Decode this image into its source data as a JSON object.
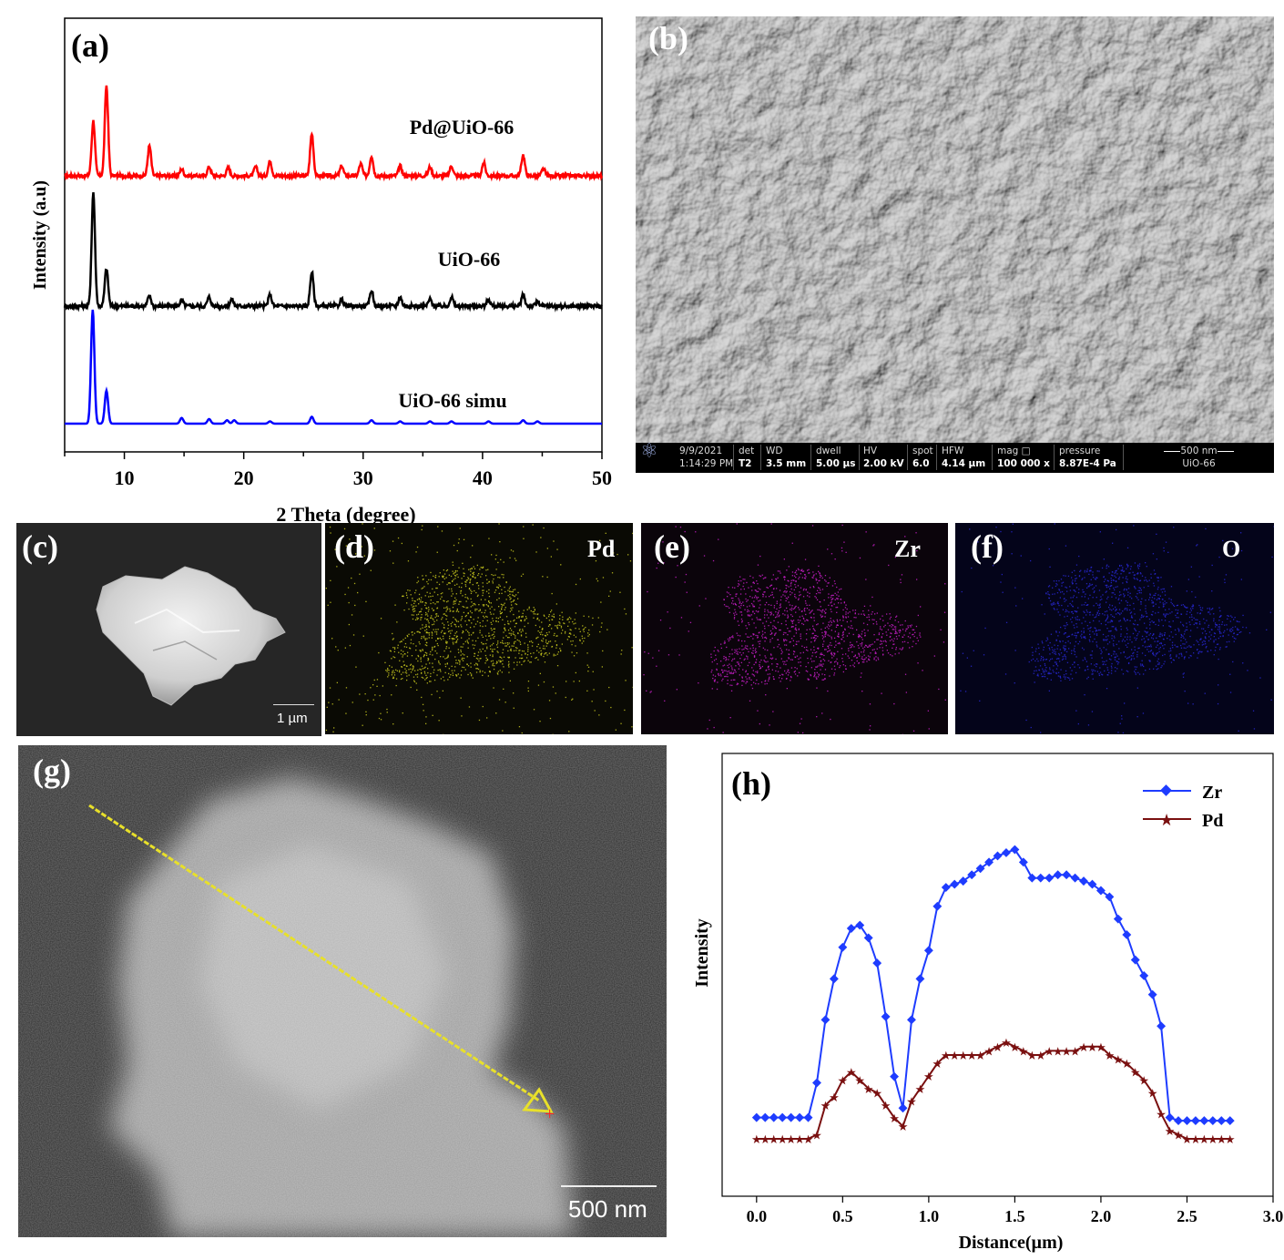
{
  "panels": {
    "a": {
      "label": "(a)",
      "chart_data": {
        "type": "line",
        "xlabel": "2 Theta (degree)",
        "ylabel": "Intensity (a.u)",
        "xlim": [
          5,
          50
        ],
        "xticks": [
          10,
          20,
          30,
          40,
          50
        ],
        "grid": false,
        "series": [
          {
            "name": "Pd@UiO-66",
            "color": "#ff0000",
            "offset": 2.0,
            "peaks": [
              [
                7.4,
                0.55
              ],
              [
                8.5,
                0.9
              ],
              [
                12.1,
                0.3
              ],
              [
                14.8,
                0.07
              ],
              [
                17.1,
                0.09
              ],
              [
                18.7,
                0.08
              ],
              [
                21.0,
                0.09
              ],
              [
                22.2,
                0.15
              ],
              [
                25.7,
                0.42
              ],
              [
                28.2,
                0.1
              ],
              [
                29.8,
                0.12
              ],
              [
                30.7,
                0.2
              ],
              [
                33.1,
                0.1
              ],
              [
                35.6,
                0.09
              ],
              [
                37.4,
                0.1
              ],
              [
                40.1,
                0.13
              ],
              [
                43.4,
                0.21
              ],
              [
                45.1,
                0.07
              ]
            ]
          },
          {
            "name": "UiO-66",
            "color": "#000000",
            "offset": 1.0,
            "peaks": [
              [
                7.4,
                1.0
              ],
              [
                8.5,
                0.33
              ],
              [
                12.1,
                0.09
              ],
              [
                14.8,
                0.05
              ],
              [
                17.1,
                0.08
              ],
              [
                19.0,
                0.06
              ],
              [
                22.2,
                0.1
              ],
              [
                25.7,
                0.3
              ],
              [
                28.2,
                0.06
              ],
              [
                30.7,
                0.14
              ],
              [
                33.1,
                0.08
              ],
              [
                35.6,
                0.06
              ],
              [
                37.4,
                0.08
              ],
              [
                40.5,
                0.06
              ],
              [
                43.4,
                0.1
              ],
              [
                44.6,
                0.04
              ]
            ]
          },
          {
            "name": "UiO-66 simu",
            "color": "#0000ff",
            "offset": 0.0,
            "peaks": [
              [
                7.35,
                1.0
              ],
              [
                8.5,
                0.29
              ],
              [
                14.8,
                0.05
              ],
              [
                17.1,
                0.04
              ],
              [
                18.6,
                0.03
              ],
              [
                19.2,
                0.03
              ],
              [
                22.2,
                0.02
              ],
              [
                25.7,
                0.06
              ],
              [
                30.7,
                0.03
              ],
              [
                33.1,
                0.02
              ],
              [
                35.6,
                0.02
              ],
              [
                37.4,
                0.02
              ],
              [
                40.5,
                0.02
              ],
              [
                43.4,
                0.03
              ],
              [
                44.6,
                0.02
              ]
            ]
          }
        ]
      }
    },
    "b": {
      "label": "(b)",
      "info_bar": {
        "date": "9/9/2021",
        "time": "1:14:29 PM",
        "det_label": "det",
        "det": "T2",
        "wd_label": "WD",
        "wd": "3.5 mm",
        "dwell_label": "dwell",
        "dwell": "5.00 µs",
        "hv_label": "HV",
        "hv": "2.00 kV",
        "spot_label": "spot",
        "spot": "6.0",
        "hfw_label": "HFW",
        "hfw": "4.14 µm",
        "mag_label": "mag",
        "mag_icon": "□",
        "mag": "100 000 x",
        "pressure_label": "pressure",
        "pressure": "8.87E-4 Pa",
        "scale": "500 nm",
        "sample": "UiO-66"
      }
    },
    "c": {
      "label": "(c)",
      "scale_bar": "1 µm"
    },
    "d": {
      "label": "(d)",
      "element": "Pd",
      "color": "#c8c81e"
    },
    "e": {
      "label": "(e)",
      "element": "Zr",
      "color": "#c81ec8"
    },
    "f": {
      "label": "(f)",
      "element": "O",
      "color": "#2828d2"
    },
    "g": {
      "label": "(g)",
      "scale_bar": "500 nm"
    },
    "h": {
      "label": "(h)",
      "chart_data": {
        "type": "line",
        "xlabel": "Distance(µm)",
        "ylabel": "Intensity",
        "xlim": [
          -0.2,
          3.0
        ],
        "ylim": [
          0,
          100
        ],
        "xticks": [
          "0.0",
          "0.5",
          "1.0",
          "1.5",
          "2.0",
          "2.5",
          "3.0"
        ],
        "legend_position": "top-right",
        "grid": false,
        "series": [
          {
            "name": "Zr",
            "color": "#1e3cff",
            "marker": "diamond",
            "x": [
              0.0,
              0.05,
              0.1,
              0.15,
              0.2,
              0.25,
              0.3,
              0.35,
              0.4,
              0.45,
              0.5,
              0.55,
              0.6,
              0.65,
              0.7,
              0.75,
              0.8,
              0.85,
              0.9,
              0.95,
              1.0,
              1.05,
              1.1,
              1.15,
              1.2,
              1.25,
              1.3,
              1.35,
              1.4,
              1.45,
              1.5,
              1.55,
              1.6,
              1.65,
              1.7,
              1.75,
              1.8,
              1.85,
              1.9,
              1.95,
              2.0,
              2.05,
              2.1,
              2.15,
              2.2,
              2.25,
              2.3,
              2.35,
              2.4,
              2.45,
              2.5,
              2.55,
              2.6,
              2.65,
              2.7,
              2.75
            ],
            "y": [
              3,
              3,
              3,
              3,
              3,
              3,
              3,
              14,
              34,
              47,
              57,
              63,
              64,
              60,
              52,
              35,
              16,
              6,
              34,
              47,
              56,
              70,
              76,
              77,
              78,
              80,
              82,
              84,
              86,
              87,
              88,
              84,
              79,
              79,
              79,
              80,
              80,
              79,
              78,
              77,
              75,
              73,
              66,
              61,
              53,
              48,
              42,
              32,
              3,
              2,
              2,
              2,
              2,
              2,
              2,
              2
            ]
          },
          {
            "name": "Pd",
            "color": "#7a1010",
            "marker": "star",
            "x": [
              0.0,
              0.05,
              0.1,
              0.15,
              0.2,
              0.25,
              0.3,
              0.35,
              0.4,
              0.45,
              0.5,
              0.55,
              0.6,
              0.65,
              0.7,
              0.75,
              0.8,
              0.85,
              0.9,
              0.95,
              1.0,
              1.05,
              1.1,
              1.15,
              1.2,
              1.25,
              1.3,
              1.35,
              1.4,
              1.45,
              1.5,
              1.55,
              1.6,
              1.65,
              1.7,
              1.75,
              1.8,
              1.85,
              1.9,
              1.95,
              2.0,
              2.05,
              2.1,
              2.15,
              2.2,
              2.25,
              2.3,
              2.35,
              2.4,
              2.45,
              2.5,
              2.55,
              2.6,
              2.65,
              2.7,
              2.75
            ],
            "y": [
              0,
              0,
              0,
              0,
              0,
              0,
              0,
              1,
              8,
              10,
              14,
              16,
              14,
              12,
              11,
              8,
              5,
              3,
              9,
              12,
              15,
              18,
              20,
              20,
              20,
              20,
              20,
              21,
              22,
              23,
              22,
              21,
              20,
              20,
              21,
              21,
              21,
              21,
              22,
              22,
              22,
              20,
              19,
              18,
              16,
              14,
              11,
              6,
              2,
              1,
              0,
              0,
              0,
              0,
              0,
              0
            ]
          }
        ]
      }
    }
  }
}
